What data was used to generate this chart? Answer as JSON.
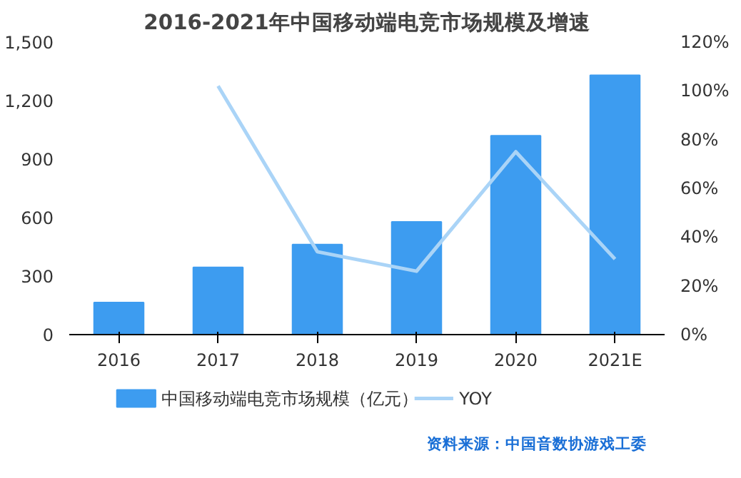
{
  "chart_data": {
    "type": "bar",
    "title": "2016-2021年中国移动端电竞市场规模及增速",
    "categories": [
      "2016",
      "2017",
      "2018",
      "2019",
      "2020",
      "2021E"
    ],
    "series": [
      {
        "name": "中国移动端电竞市场规模（亿元）",
        "color": "#3d9cf0",
        "values": [
          165,
          345,
          462,
          578,
          1020,
          1330
        ]
      },
      {
        "name": "YOY",
        "type": "line",
        "axis": "y2",
        "color": "#aad4f7",
        "values": [
          null,
          102,
          34,
          26,
          75,
          31
        ]
      }
    ],
    "ylim": [
      0,
      1500
    ],
    "yticks": [
      0,
      300,
      600,
      900,
      {
        "value": 1200,
        "label": "1,200"
      },
      {
        "value": 1500,
        "label": "1,500"
      }
    ],
    "y2lim": [
      0,
      120
    ],
    "y2ticks": [
      {
        "value": 0,
        "label": "0%"
      },
      {
        "value": 20,
        "label": "20%"
      },
      {
        "value": 40,
        "label": "40%"
      },
      {
        "value": 60,
        "label": "60%"
      },
      {
        "value": 80,
        "label": "80%"
      },
      {
        "value": 100,
        "label": "100%"
      },
      {
        "value": 120,
        "label": "120%"
      }
    ],
    "legend": "bottom",
    "grid": false,
    "marker": "none",
    "line_style": "solid",
    "annotations": [
      "资料来源：中国音数协游戏工委"
    ]
  }
}
